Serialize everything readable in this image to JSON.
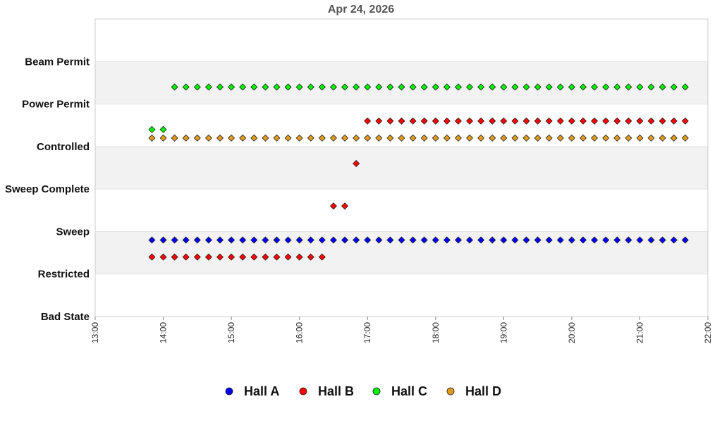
{
  "chart_data": {
    "type": "scatter",
    "title": "Apr 24, 2026",
    "xlabel": "",
    "ylabel": "",
    "y_categories": [
      "Bad State",
      "Restricted",
      "Sweep",
      "Sweep Complete",
      "Controlled",
      "Power Permit",
      "Beam Permit"
    ],
    "x_ticks": [
      "13:00",
      "14:00",
      "15:00",
      "16:00",
      "17:00",
      "18:00",
      "19:00",
      "20:00",
      "21:00",
      "22:00"
    ],
    "xlim": [
      "13:00",
      "22:00"
    ],
    "ylim": [
      0,
      7
    ],
    "grid": "alternating horizontal bands",
    "legend": "bottom",
    "series": [
      {
        "name": "Hall A",
        "color": "#0000ff",
        "segments": [
          {
            "state": "Restricted",
            "offset": 0.8,
            "from": "13:50",
            "to": "21:40",
            "step_min": 10
          }
        ]
      },
      {
        "name": "Hall B",
        "color": "#ff0000",
        "segments": [
          {
            "state": "Restricted",
            "offset": 0.4,
            "from": "13:50",
            "to": "16:20",
            "step_min": 10
          },
          {
            "state": "Sweep",
            "offset": 0.6,
            "from": "16:30",
            "to": "16:40",
            "step_min": 10
          },
          {
            "state": "Sweep Complete",
            "offset": 0.6,
            "from": "16:50",
            "to": "16:50",
            "step_min": 10
          },
          {
            "state": "Controlled",
            "offset": 0.6,
            "from": "17:00",
            "to": "21:40",
            "step_min": 10
          }
        ]
      },
      {
        "name": "Hall C",
        "color": "#00ee00",
        "segments": [
          {
            "state": "Controlled",
            "offset": 0.4,
            "from": "13:50",
            "to": "14:00",
            "step_min": 10
          },
          {
            "state": "Power Permit",
            "offset": 0.4,
            "from": "14:10",
            "to": "21:40",
            "step_min": 10
          }
        ]
      },
      {
        "name": "Hall D",
        "color": "#e09a20",
        "segments": [
          {
            "state": "Controlled",
            "offset": 0.2,
            "from": "13:50",
            "to": "21:40",
            "step_min": 10
          }
        ]
      }
    ]
  }
}
